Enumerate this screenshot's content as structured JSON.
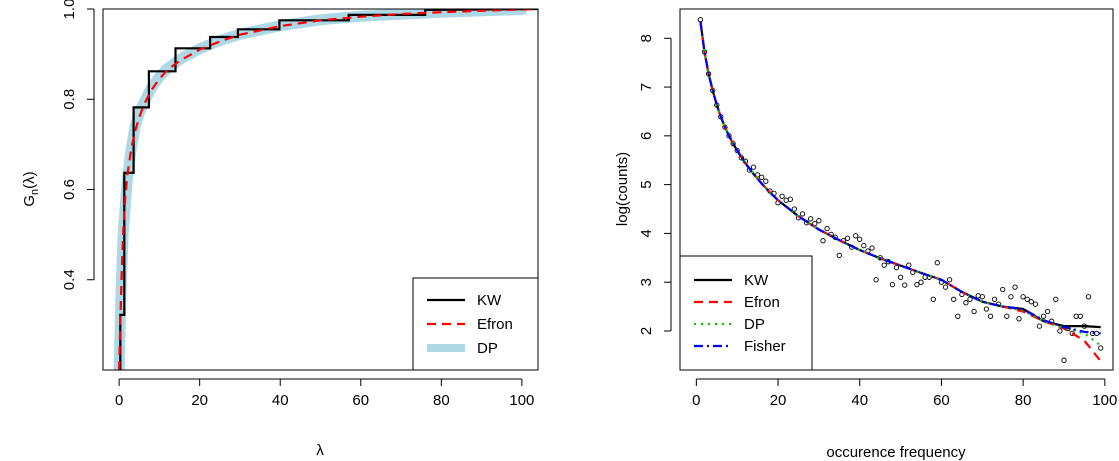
{
  "chart_data": [
    {
      "type": "line",
      "xlabel": "λ",
      "ylabel": "Gn(λ)",
      "ylabel_base": "G",
      "ylabel_sub": "n",
      "ylabel_rest": "(λ)",
      "xlim": [
        -4,
        104
      ],
      "ylim": [
        0.2,
        1.0
      ],
      "xticks": [
        0,
        20,
        40,
        60,
        80,
        100
      ],
      "yticks": [
        0.4,
        0.6,
        0.8,
        1.0
      ],
      "xtick_labels": [
        "0",
        "20",
        "40",
        "60",
        "80",
        "100"
      ],
      "ytick_labels": [
        "0.4",
        "0.6",
        "0.8",
        "1.0"
      ],
      "legend_position": "bottom-right",
      "series": [
        {
          "name": "KW",
          "color": "#000000",
          "style": "step",
          "x": [
            0,
            0.3,
            0.3,
            1.3,
            1.3,
            3.6,
            3.6,
            7.4,
            7.4,
            14,
            14,
            22.6,
            22.6,
            29.5,
            29.5,
            39.8,
            39.8,
            57,
            57,
            76,
            76,
            104
          ],
          "y": [
            0.2,
            0.2,
            0.322,
            0.322,
            0.637,
            0.637,
            0.782,
            0.782,
            0.862,
            0.862,
            0.913,
            0.913,
            0.938,
            0.938,
            0.955,
            0.955,
            0.975,
            0.975,
            0.987,
            0.987,
            0.998,
            1.0
          ]
        },
        {
          "name": "Efron",
          "color": "#ff0000",
          "style": "dashed",
          "x": [
            0,
            0.3,
            0.6,
            1,
            1.5,
            2,
            3,
            4,
            5,
            6,
            8,
            10,
            12,
            15,
            20,
            25,
            30,
            40,
            50,
            60,
            70,
            80,
            90,
            100,
            104
          ],
          "y": [
            0.2,
            0.3,
            0.4,
            0.5,
            0.58,
            0.63,
            0.69,
            0.73,
            0.76,
            0.785,
            0.82,
            0.845,
            0.865,
            0.885,
            0.91,
            0.928,
            0.943,
            0.962,
            0.975,
            0.983,
            0.989,
            0.993,
            0.996,
            0.999,
            1.0
          ]
        },
        {
          "name": "DP",
          "color": "#add8e6",
          "style": "band",
          "x": [
            0,
            0.5,
            1,
            2,
            3,
            4,
            5,
            6,
            8,
            10,
            12,
            15,
            20,
            25,
            30,
            40,
            50,
            60,
            80,
            100
          ],
          "y": [
            0.2,
            0.38,
            0.5,
            0.62,
            0.69,
            0.74,
            0.77,
            0.79,
            0.825,
            0.85,
            0.868,
            0.888,
            0.912,
            0.93,
            0.944,
            0.963,
            0.976,
            0.984,
            0.993,
            0.999
          ]
        }
      ]
    },
    {
      "type": "scatter",
      "xlabel": "occurence frequency",
      "ylabel": "log(counts)",
      "xlim": [
        -4,
        102
      ],
      "ylim": [
        1.2,
        8.6
      ],
      "xticks": [
        0,
        20,
        40,
        60,
        80,
        100
      ],
      "yticks": [
        2,
        3,
        4,
        5,
        6,
        7,
        8
      ],
      "xtick_labels": [
        "0",
        "20",
        "40",
        "60",
        "80",
        "100"
      ],
      "ytick_labels": [
        "2",
        "3",
        "4",
        "5",
        "6",
        "7",
        "8"
      ],
      "legend_position": "bottom-left",
      "points": {
        "x": [
          1,
          2,
          3,
          4,
          5,
          6,
          7,
          8,
          9,
          10,
          11,
          12,
          13,
          14,
          15,
          16,
          17,
          18,
          19,
          20,
          21,
          22,
          23,
          24,
          25,
          26,
          27,
          28,
          29,
          30,
          31,
          32,
          33,
          34,
          35,
          36,
          37,
          38,
          39,
          40,
          41,
          42,
          43,
          44,
          45,
          46,
          47,
          48,
          49,
          50,
          51,
          52,
          53,
          54,
          55,
          56,
          57,
          58,
          59,
          60,
          61,
          62,
          63,
          64,
          65,
          66,
          67,
          68,
          69,
          70,
          71,
          72,
          73,
          74,
          75,
          76,
          77,
          78,
          79,
          80,
          81,
          82,
          83,
          84,
          85,
          86,
          87,
          88,
          89,
          90,
          91,
          92,
          93,
          94,
          95,
          96,
          97,
          98,
          99
        ],
        "y": [
          8.38,
          7.72,
          7.27,
          6.93,
          6.63,
          6.39,
          6.18,
          6.0,
          5.84,
          5.7,
          5.55,
          5.48,
          5.3,
          5.36,
          5.2,
          5.15,
          5.07,
          4.87,
          4.82,
          4.63,
          4.76,
          4.68,
          4.7,
          4.5,
          4.32,
          4.4,
          4.22,
          4.3,
          4.2,
          4.26,
          3.85,
          4.1,
          3.98,
          3.92,
          3.55,
          3.85,
          3.9,
          3.72,
          3.95,
          3.88,
          3.75,
          3.64,
          3.7,
          3.05,
          3.5,
          3.35,
          3.42,
          2.95,
          3.3,
          3.1,
          2.94,
          3.35,
          3.2,
          2.95,
          3.0,
          3.1,
          3.1,
          2.65,
          3.4,
          3.0,
          2.9,
          3.05,
          2.65,
          2.3,
          2.75,
          2.58,
          2.65,
          2.4,
          2.72,
          2.7,
          2.45,
          2.3,
          2.65,
          2.55,
          2.85,
          2.3,
          2.7,
          2.9,
          2.25,
          2.7,
          2.65,
          2.6,
          2.55,
          2.1,
          2.3,
          2.4,
          2.2,
          2.65,
          2.0,
          1.4,
          2.05,
          1.95,
          2.3,
          2.3,
          2.1,
          2.7,
          1.95,
          1.95,
          1.65
        ]
      },
      "series": [
        {
          "name": "KW",
          "color": "#000000",
          "style": "solid",
          "x": [
            1,
            2,
            3,
            4,
            5,
            6,
            7,
            8,
            9,
            10,
            12,
            14,
            16,
            18,
            20,
            25,
            30,
            35,
            40,
            45,
            50,
            55,
            60,
            65,
            70,
            75,
            80,
            85,
            90,
            95,
            99
          ],
          "y": [
            8.35,
            7.72,
            7.27,
            6.93,
            6.63,
            6.39,
            6.18,
            6.0,
            5.84,
            5.7,
            5.44,
            5.22,
            5.02,
            4.84,
            4.68,
            4.35,
            4.08,
            3.86,
            3.66,
            3.49,
            3.34,
            3.19,
            3.05,
            2.8,
            2.6,
            2.5,
            2.45,
            2.2,
            2.1,
            2.1,
            2.08
          ]
        },
        {
          "name": "Efron",
          "color": "#ff0000",
          "style": "dashed",
          "x": [
            1,
            2,
            3,
            4,
            5,
            6,
            7,
            8,
            9,
            10,
            12,
            14,
            16,
            18,
            20,
            25,
            30,
            35,
            40,
            45,
            50,
            55,
            60,
            65,
            70,
            75,
            80,
            85,
            90,
            95,
            99
          ],
          "y": [
            8.35,
            7.72,
            7.27,
            6.93,
            6.63,
            6.39,
            6.18,
            6.0,
            5.84,
            5.7,
            5.44,
            5.22,
            5.02,
            4.84,
            4.68,
            4.35,
            4.08,
            3.86,
            3.66,
            3.49,
            3.34,
            3.19,
            3.05,
            2.8,
            2.6,
            2.5,
            2.4,
            2.2,
            2.05,
            1.8,
            1.38
          ]
        },
        {
          "name": "DP",
          "color": "#00cd00",
          "style": "dotted",
          "x": [
            1,
            2,
            3,
            4,
            5,
            6,
            7,
            8,
            9,
            10,
            12,
            14,
            16,
            18,
            20,
            25,
            30,
            35,
            40,
            45,
            50,
            55,
            60,
            65,
            70,
            75,
            80,
            85,
            90,
            95,
            99
          ],
          "y": [
            8.35,
            7.72,
            7.27,
            6.93,
            6.63,
            6.39,
            6.18,
            6.0,
            5.84,
            5.7,
            5.44,
            5.22,
            5.02,
            4.84,
            4.68,
            4.35,
            4.08,
            3.86,
            3.66,
            3.49,
            3.34,
            3.19,
            3.05,
            2.8,
            2.6,
            2.5,
            2.42,
            2.2,
            2.06,
            1.95,
            1.7
          ]
        },
        {
          "name": "Fisher",
          "color": "#0000ff",
          "style": "dashdot",
          "x": [
            1,
            2,
            3,
            4,
            5,
            6,
            7,
            8,
            9,
            10,
            12,
            14,
            16,
            18,
            20,
            25,
            30,
            35,
            40,
            45,
            50,
            55,
            60,
            65,
            70,
            75,
            80,
            85,
            90,
            95,
            99
          ],
          "y": [
            8.35,
            7.72,
            7.27,
            6.93,
            6.63,
            6.39,
            6.18,
            6.0,
            5.84,
            5.7,
            5.44,
            5.22,
            5.02,
            4.84,
            4.68,
            4.35,
            4.08,
            3.86,
            3.66,
            3.49,
            3.34,
            3.19,
            3.05,
            2.8,
            2.6,
            2.5,
            2.45,
            2.22,
            2.08,
            1.98,
            1.95
          ]
        }
      ]
    }
  ]
}
